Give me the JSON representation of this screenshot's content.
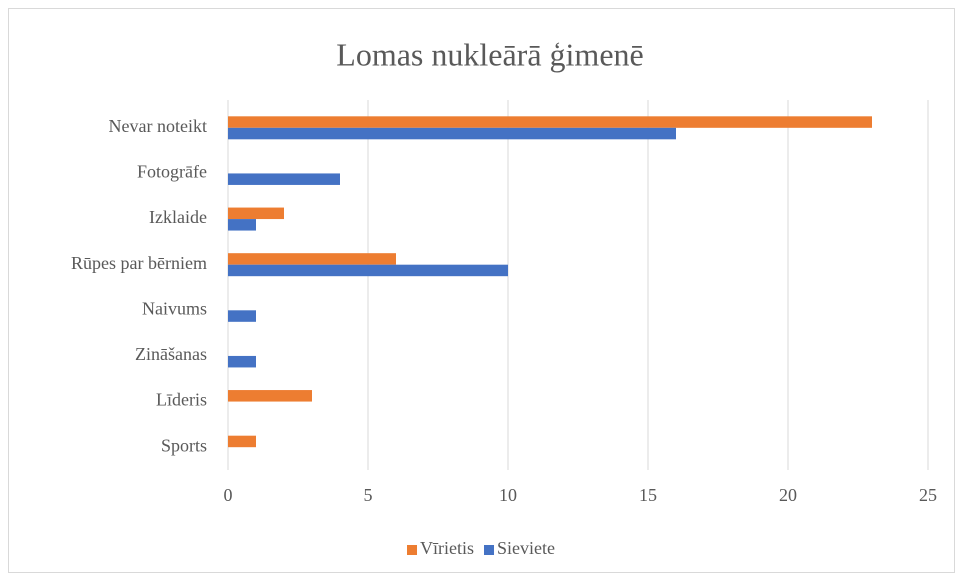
{
  "chart_data": {
    "type": "bar",
    "orientation": "horizontal",
    "title": "Lomas nukleārā ģimenē",
    "categories": [
      "Nevar noteikt",
      "Fotogrāfe",
      "Izklaide",
      "Rūpes par bērniem",
      "Naivums",
      "Zināšanas",
      "Līderis",
      "Sports"
    ],
    "series": [
      {
        "name": "Vīrietis",
        "color": "#ed7d31",
        "values": [
          23,
          0,
          2,
          6,
          0,
          0,
          3,
          1
        ]
      },
      {
        "name": "Sieviete",
        "color": "#4472c4",
        "values": [
          16,
          4,
          1,
          10,
          1,
          1,
          0,
          0
        ]
      }
    ],
    "xlim": [
      0,
      25
    ],
    "xticks": [
      0,
      5,
      10,
      15,
      20,
      25
    ],
    "grid": true,
    "legend": "bottom"
  }
}
